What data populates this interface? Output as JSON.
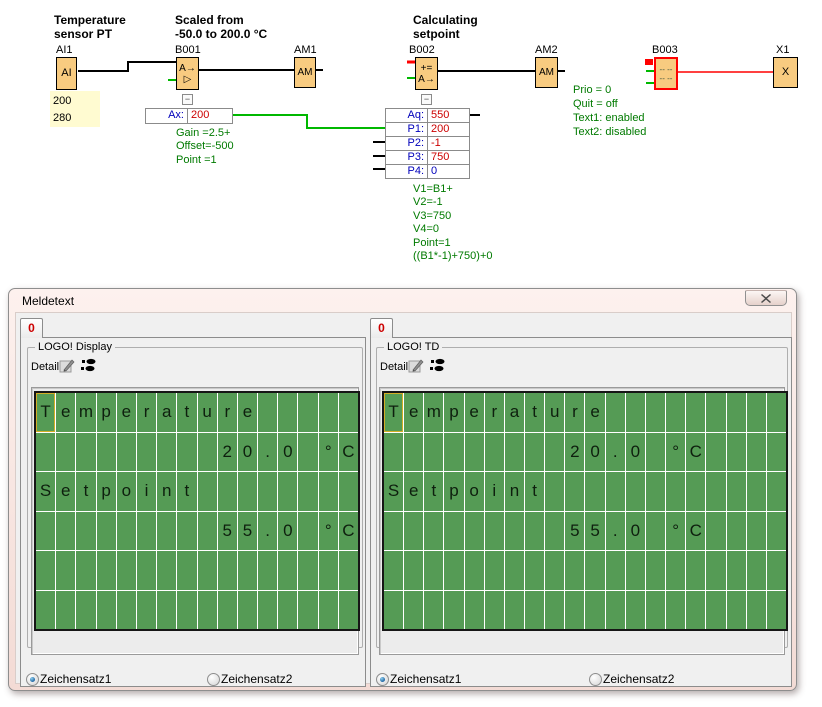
{
  "colors": {
    "block_fill": "#f8cb80",
    "error_border": "#ff0000",
    "wire_black": "#000000",
    "wire_green": "#00b800",
    "wire_red": "#ff0000",
    "param_label_blue": "#0000bb",
    "param_value_red": "#cc0000",
    "annotation_green": "#007a00",
    "note_bg_yellow": "#fffbd1",
    "display_green": "#559b55",
    "display_gridline": "#ffffff",
    "tab_text_red": "#cc0000"
  },
  "diagram": {
    "headers": [
      {
        "text": "Temperature\nsensor PT"
      },
      {
        "text": "Scaled from\n-50.0 to 200.0 °C"
      },
      {
        "text": "Calculating\nsetpoint"
      }
    ],
    "blocks": {
      "ai1": {
        "ref": "AI1",
        "line1": "AI"
      },
      "b001": {
        "ref": "B001",
        "line1": "A→",
        "line2": "▷"
      },
      "am1": {
        "ref": "AM1",
        "line1": "AM"
      },
      "b002": {
        "ref": "B002",
        "line1": "+=",
        "line2": "A→"
      },
      "am2": {
        "ref": "AM2",
        "line1": "AM"
      },
      "b003": {
        "ref": "B003",
        "line1": "-- --",
        "line2": "-- --"
      },
      "x1": {
        "ref": "X1",
        "line1": "X"
      }
    },
    "ai_values": {
      "line1": "200",
      "line2": "280"
    },
    "b001_panel": {
      "collapse_glyph": "−",
      "param_label": "Ax:",
      "param_value": "200",
      "notes": [
        "Gain =2.5+",
        "Offset=-500",
        "Point =1"
      ]
    },
    "b002_panel": {
      "collapse_glyph": "−",
      "rows": [
        {
          "label": "Aq:",
          "value": "550",
          "value_color": "#cc0000"
        },
        {
          "label": "P1:",
          "value": "200",
          "value_color": "#cc0000"
        },
        {
          "label": "P2:",
          "value": "-1",
          "value_color": "#cc0000"
        },
        {
          "label": "P3:",
          "value": "750",
          "value_color": "#cc0000"
        },
        {
          "label": "P4:",
          "value": "0",
          "value_color": "#0000bb"
        }
      ],
      "notes": [
        "V1=B1+",
        "V2=-1",
        "V3=750",
        "V4=0",
        "Point=1",
        "((B1*-1)+750)+0"
      ]
    },
    "b003_notes": [
      "Prio = 0",
      "Quit = off",
      "Text1: enabled",
      "Text2: disabled"
    ]
  },
  "dialog": {
    "title": "Meldetext",
    "close_icon": "✕",
    "edit_icon": "pencil-on-paper",
    "ticker_icon": "footprints",
    "panels": [
      {
        "tab": "0",
        "group_title": "LOGO! Display",
        "details_label": "Details",
        "display": {
          "cols": 16,
          "rows": 6,
          "lines": [
            "Temperature",
            "         20.0 °C",
            "Setpoint",
            "         55.0 °C",
            "",
            ""
          ]
        },
        "radios": [
          {
            "label": "Zeichensatz1",
            "selected": true
          },
          {
            "label": "Zeichensatz2",
            "selected": false
          }
        ]
      },
      {
        "tab": "0",
        "group_title": "LOGO! TD",
        "details_label": "Details",
        "display": {
          "cols": 20,
          "rows": 6,
          "lines": [
            "Temperature",
            "         20.0 °C",
            "Setpoint",
            "         55.0 °C",
            "",
            ""
          ]
        },
        "radios": [
          {
            "label": "Zeichensatz1",
            "selected": true
          },
          {
            "label": "Zeichensatz2",
            "selected": false
          }
        ]
      }
    ]
  }
}
